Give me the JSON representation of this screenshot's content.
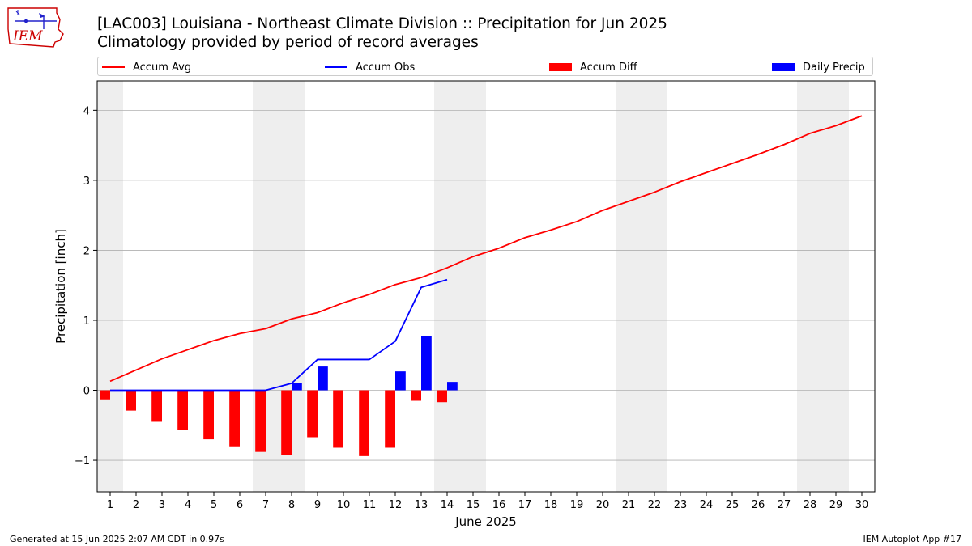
{
  "header": {
    "title_line1": "[LAC003] Louisiana - Northeast Climate Division :: Precipitation for Jun 2025",
    "title_line2": "Climatology provided by period of record averages",
    "logo_text": "IEM"
  },
  "legend": {
    "accum_avg": "Accum Avg",
    "accum_obs": "Accum Obs",
    "accum_diff": "Accum Diff",
    "daily_precip": "Daily Precip"
  },
  "footer": {
    "left": "Generated at 15 Jun 2025 2:07 AM CDT in 0.97s",
    "right": "IEM Autoplot App #17"
  },
  "colors": {
    "accum_avg": "#ff0000",
    "accum_obs": "#0000ff",
    "accum_diff": "#ff0000",
    "daily_precip": "#0000ff",
    "weekend_shade": "#eeeeee",
    "grid": "#b0b0b0"
  },
  "chart_data": {
    "type": "bar",
    "xlabel": "June 2025",
    "ylabel": "Precipitation [inch]",
    "xlim": [
      0.5,
      30.5
    ],
    "ylim": [
      -1.45,
      4.42
    ],
    "yticks": [
      -1,
      0,
      1,
      2,
      3,
      4
    ],
    "ytick_labels": [
      "−1",
      "0",
      "1",
      "2",
      "3",
      "4"
    ],
    "xticks": [
      1,
      2,
      3,
      4,
      5,
      6,
      7,
      8,
      9,
      10,
      11,
      12,
      13,
      14,
      15,
      16,
      17,
      18,
      19,
      20,
      21,
      22,
      23,
      24,
      25,
      26,
      27,
      28,
      29,
      30
    ],
    "grid": "horizontal",
    "legend_position": "top",
    "weekend_days": [
      1,
      7,
      8,
      14,
      15,
      21,
      22,
      28,
      29
    ],
    "series": [
      {
        "name": "Accum Avg",
        "type": "line",
        "x": [
          1,
          2,
          3,
          4,
          5,
          6,
          7,
          8,
          9,
          10,
          11,
          12,
          13,
          14,
          15,
          16,
          17,
          18,
          19,
          20,
          21,
          22,
          23,
          24,
          25,
          26,
          27,
          28,
          29,
          30
        ],
        "values": [
          0.13,
          0.29,
          0.45,
          0.58,
          0.71,
          0.81,
          0.88,
          1.02,
          1.11,
          1.25,
          1.37,
          1.51,
          1.61,
          1.75,
          1.91,
          2.03,
          2.18,
          2.29,
          2.41,
          2.57,
          2.7,
          2.83,
          2.98,
          3.11,
          3.24,
          3.37,
          3.51,
          3.67,
          3.78,
          3.92
        ]
      },
      {
        "name": "Accum Obs",
        "type": "line",
        "x": [
          1,
          2,
          3,
          4,
          5,
          6,
          7,
          8,
          9,
          10,
          11,
          12,
          13,
          14
        ],
        "values": [
          0.0,
          0.0,
          0.0,
          0.0,
          0.0,
          0.0,
          0.0,
          0.1,
          0.44,
          0.44,
          0.44,
          0.7,
          1.47,
          1.58
        ]
      },
      {
        "name": "Accum Diff",
        "type": "bar",
        "x": [
          1,
          2,
          3,
          4,
          5,
          6,
          7,
          8,
          9,
          10,
          11,
          12,
          13,
          14
        ],
        "values": [
          -0.13,
          -0.29,
          -0.45,
          -0.57,
          -0.7,
          -0.8,
          -0.88,
          -0.92,
          -0.67,
          -0.82,
          -0.94,
          -0.82,
          -0.15,
          -0.17
        ]
      },
      {
        "name": "Daily Precip",
        "type": "bar",
        "x": [
          1,
          2,
          3,
          4,
          5,
          6,
          7,
          8,
          9,
          10,
          11,
          12,
          13,
          14
        ],
        "values": [
          0,
          0,
          0,
          0,
          0,
          0,
          0,
          0.1,
          0.34,
          0,
          0,
          0.27,
          0.77,
          0.12
        ]
      }
    ]
  }
}
